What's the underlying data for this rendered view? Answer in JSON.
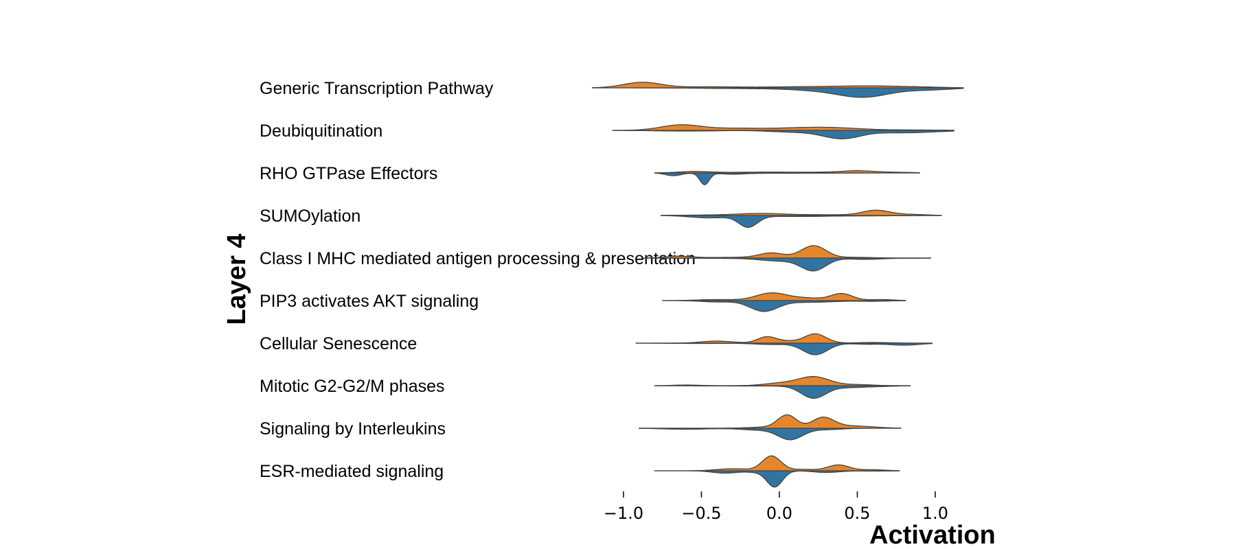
{
  "chart_data": {
    "type": "split-violin",
    "ylabel": "Layer 4",
    "xlabel": "Activation",
    "xlim": [
      -1.2,
      1.25
    ],
    "xticks": [
      -1.0,
      -0.5,
      0.0,
      0.5,
      1.0
    ],
    "xtick_labels": [
      "−1.0",
      "−0.5",
      "0.0",
      "0.5",
      "1.0"
    ],
    "colors": {
      "upper": "#e6862c",
      "lower": "#3274a1",
      "outline": "#444444"
    },
    "rows": [
      {
        "label": "Generic Transcription Pathway",
        "range": [
          -1.2,
          1.18
        ],
        "upper": [
          [
            -0.88,
            0.16,
            0.12
          ],
          [
            -0.45,
            0.03,
            0.2
          ],
          [
            0.2,
            0.035,
            0.25
          ],
          [
            0.6,
            0.045,
            0.18
          ],
          [
            0.9,
            0.02,
            0.15
          ]
        ],
        "lower": [
          [
            0.55,
            0.24,
            0.16
          ],
          [
            0.3,
            0.07,
            0.2
          ],
          [
            0.95,
            0.06,
            0.15
          ],
          [
            -0.2,
            0.02,
            0.3
          ]
        ]
      },
      {
        "label": "Deubiquitination",
        "range": [
          -1.07,
          1.12
        ],
        "upper": [
          [
            -0.63,
            0.16,
            0.13
          ],
          [
            -0.3,
            0.05,
            0.15
          ],
          [
            0.3,
            0.08,
            0.22
          ],
          [
            0.0,
            0.03,
            0.2
          ],
          [
            0.9,
            0.01,
            0.15
          ]
        ],
        "lower": [
          [
            0.4,
            0.23,
            0.12
          ],
          [
            0.1,
            0.05,
            0.15
          ],
          [
            0.8,
            0.07,
            0.2
          ],
          [
            -0.6,
            0.02,
            0.2
          ]
        ]
      },
      {
        "label": "RHO GTPase Effectors",
        "range": [
          -0.8,
          0.9
        ],
        "upper": [
          [
            -0.55,
            0.04,
            0.1
          ],
          [
            -0.2,
            0.015,
            0.2
          ],
          [
            0.25,
            0.02,
            0.3
          ],
          [
            0.5,
            0.05,
            0.1
          ],
          [
            0.75,
            0.015,
            0.12
          ]
        ],
        "lower": [
          [
            -0.48,
            0.34,
            0.03
          ],
          [
            -0.68,
            0.08,
            0.05
          ],
          [
            -0.3,
            0.03,
            0.08
          ],
          [
            0.0,
            0.01,
            0.3
          ]
        ]
      },
      {
        "label": "SUMOylation",
        "range": [
          -0.76,
          1.04
        ],
        "upper": [
          [
            -0.12,
            0.06,
            0.16
          ],
          [
            -0.5,
            0.01,
            0.15
          ],
          [
            0.3,
            0.02,
            0.15
          ],
          [
            0.62,
            0.15,
            0.09
          ],
          [
            0.85,
            0.03,
            0.1
          ]
        ],
        "lower": [
          [
            -0.2,
            0.33,
            0.06
          ],
          [
            -0.45,
            0.07,
            0.12
          ],
          [
            0.1,
            0.03,
            0.2
          ],
          [
            0.6,
            0.01,
            0.2
          ]
        ]
      },
      {
        "label": "Class I MHC mediated antigen processing & presentation",
        "range": [
          -0.87,
          0.97
        ],
        "upper": [
          [
            0.22,
            0.36,
            0.08
          ],
          [
            -0.05,
            0.14,
            0.08
          ],
          [
            -0.3,
            0.02,
            0.2
          ],
          [
            -0.65,
            0.05,
            0.08
          ],
          [
            0.5,
            0.02,
            0.1
          ]
        ],
        "lower": [
          [
            0.22,
            0.36,
            0.08
          ],
          [
            0.0,
            0.08,
            0.12
          ],
          [
            0.55,
            0.04,
            0.1
          ],
          [
            -0.35,
            0.01,
            0.3
          ],
          [
            0.85,
            0.01,
            0.1
          ]
        ]
      },
      {
        "label": "PIP3 activates AKT signaling",
        "range": [
          -0.75,
          0.81
        ],
        "upper": [
          [
            -0.05,
            0.22,
            0.1
          ],
          [
            0.4,
            0.2,
            0.07
          ],
          [
            0.18,
            0.07,
            0.1
          ],
          [
            -0.4,
            0.03,
            0.12
          ],
          [
            0.65,
            0.03,
            0.08
          ]
        ],
        "lower": [
          [
            -0.1,
            0.31,
            0.09
          ],
          [
            0.2,
            0.05,
            0.15
          ],
          [
            -0.4,
            0.04,
            0.1
          ],
          [
            0.6,
            0.02,
            0.1
          ]
        ]
      },
      {
        "label": "Cellular Senescence",
        "range": [
          -0.92,
          0.98
        ],
        "upper": [
          [
            0.23,
            0.27,
            0.07
          ],
          [
            -0.08,
            0.18,
            0.06
          ],
          [
            0.05,
            0.05,
            0.07
          ],
          [
            -0.4,
            0.06,
            0.1
          ],
          [
            0.6,
            0.02,
            0.1
          ]
        ],
        "lower": [
          [
            0.23,
            0.34,
            0.08
          ],
          [
            0.8,
            0.06,
            0.1
          ],
          [
            -0.05,
            0.04,
            0.1
          ],
          [
            0.55,
            0.03,
            0.08
          ],
          [
            -0.5,
            0.01,
            0.2
          ]
        ]
      },
      {
        "label": "Mitotic G2-G2/M phases",
        "range": [
          -0.8,
          0.84
        ],
        "upper": [
          [
            0.22,
            0.26,
            0.1
          ],
          [
            0.0,
            0.07,
            0.1
          ],
          [
            -0.6,
            0.02,
            0.08
          ],
          [
            0.5,
            0.03,
            0.1
          ]
        ],
        "lower": [
          [
            0.22,
            0.36,
            0.08
          ],
          [
            0.45,
            0.05,
            0.1
          ],
          [
            -0.2,
            0.01,
            0.3
          ],
          [
            0.65,
            0.02,
            0.1
          ]
        ]
      },
      {
        "label": "Signaling by Interleukins",
        "range": [
          -0.9,
          0.78
        ],
        "upper": [
          [
            0.05,
            0.38,
            0.06
          ],
          [
            0.28,
            0.31,
            0.07
          ],
          [
            0.45,
            0.06,
            0.1
          ],
          [
            -0.1,
            0.03,
            0.1
          ],
          [
            0.6,
            0.02,
            0.1
          ]
        ],
        "lower": [
          [
            0.07,
            0.33,
            0.08
          ],
          [
            -0.15,
            0.05,
            0.1
          ],
          [
            0.3,
            0.04,
            0.1
          ],
          [
            -0.6,
            0.03,
            0.15
          ]
        ]
      },
      {
        "label": "ESR-mediated signaling",
        "range": [
          -0.8,
          0.77
        ],
        "upper": [
          [
            -0.05,
            0.43,
            0.06
          ],
          [
            0.38,
            0.17,
            0.07
          ],
          [
            -0.3,
            0.06,
            0.1
          ],
          [
            0.15,
            0.04,
            0.08
          ],
          [
            0.6,
            0.03,
            0.08
          ]
        ],
        "lower": [
          [
            -0.03,
            0.47,
            0.05
          ],
          [
            -0.35,
            0.07,
            0.08
          ],
          [
            0.3,
            0.05,
            0.08
          ],
          [
            0.6,
            0.01,
            0.1
          ],
          [
            -0.15,
            0.04,
            0.06
          ]
        ]
      }
    ]
  }
}
